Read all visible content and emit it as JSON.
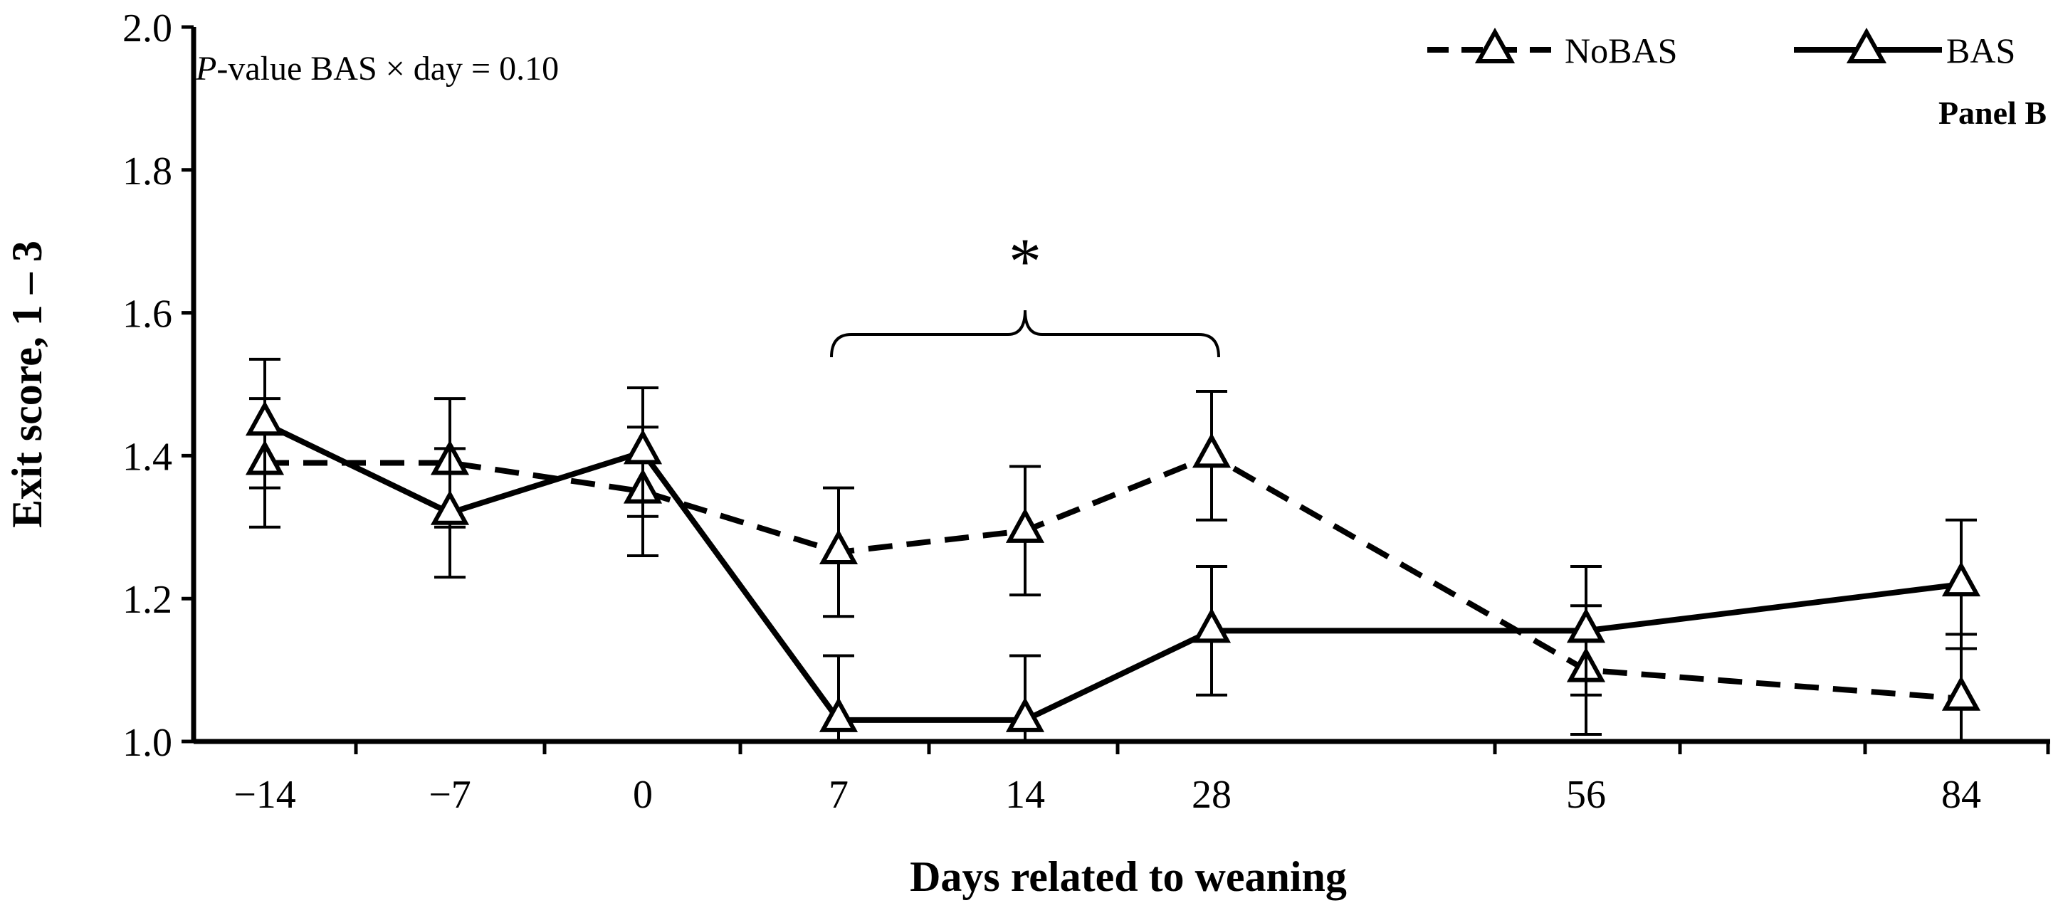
{
  "chart_data": {
    "type": "line",
    "categories": [
      "−14",
      "−7",
      "0",
      "7",
      "14",
      "28",
      "56",
      "84"
    ],
    "x_values": [
      -14,
      -7,
      0,
      7,
      14,
      28,
      56,
      84
    ],
    "series": [
      {
        "name": "NoBAS",
        "line_style": "dashed",
        "marker": "open-triangle",
        "values": [
          1.39,
          1.39,
          1.35,
          1.265,
          1.295,
          1.4,
          1.1,
          1.06
        ],
        "errors": [
          0.09,
          0.09,
          0.09,
          0.09,
          0.09,
          0.09,
          0.09,
          0.09
        ]
      },
      {
        "name": "BAS",
        "line_style": "solid",
        "marker": "open-triangle",
        "values": [
          1.445,
          1.32,
          1.405,
          1.03,
          1.03,
          1.155,
          1.155,
          1.22
        ],
        "errors": [
          0.09,
          0.09,
          0.09,
          0.09,
          0.09,
          0.09,
          0.09,
          0.09
        ]
      }
    ],
    "xlabel": "Days related to weaning",
    "ylabel": "Exit score, 1 – 3",
    "ylim": [
      1.0,
      2.0
    ],
    "yticks": [
      "1.0",
      "1.2",
      "1.4",
      "1.6",
      "1.8",
      "2.0"
    ],
    "grid": false,
    "legend_position": "top-right",
    "annotation": {
      "italic": "P",
      "text": "-value BAS × day = 0.10"
    },
    "panel_label": "Panel B",
    "significance": {
      "symbol": "*",
      "from_category": "7",
      "to_category": "28"
    }
  }
}
